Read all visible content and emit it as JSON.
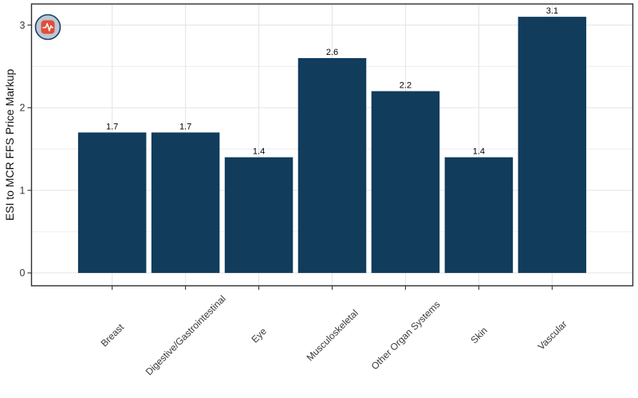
{
  "chart_data": {
    "type": "bar",
    "title": "",
    "xlabel": "",
    "ylabel": "ESI to MCR FFS Price Markup",
    "categories": [
      "Breast",
      "Digestive/Gastrointestinal",
      "Eye",
      "Musculoskeletal",
      "Other Organ Systems",
      "Skin",
      "Vascular"
    ],
    "values": [
      1.7,
      1.7,
      1.4,
      2.6,
      2.2,
      1.4,
      3.1
    ],
    "bar_labels": [
      "1.7",
      "1.7",
      "1.4",
      "2.6",
      "2.2",
      "1.4",
      "3.1"
    ],
    "ylim": [
      -0.155,
      3.255
    ],
    "yticks": [
      0,
      1,
      2,
      3
    ],
    "ytick_labels": [
      "0",
      "1",
      "2",
      "3"
    ],
    "minor_gridlines": [
      0.5,
      1.5,
      2.5
    ],
    "grid": "horizontal major+minor, vertical major at category centers",
    "legend": "none",
    "colors": {
      "bar": "#113C5C",
      "grid_major": "#E4E4E4",
      "grid_minor": "#EDEDED",
      "panel_border": "#2E2E2E",
      "axis_text": "#383838",
      "value_label": "#000000",
      "axis_title": "#111111",
      "tick_mark": "#333333"
    },
    "corner_icon": {
      "name": "medical-pulse-badge",
      "circle_fill": "#BCC9D6",
      "circle_stroke": "#1F4064",
      "square_fill": "#E14E37",
      "pulse": "#FFFFFF"
    }
  }
}
